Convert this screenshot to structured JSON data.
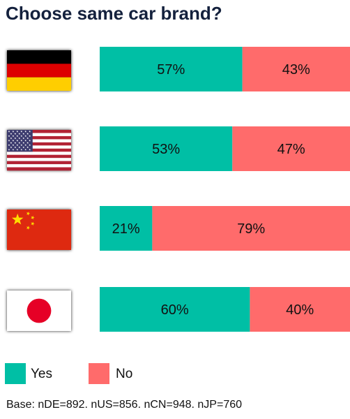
{
  "chart_data": {
    "type": "bar",
    "stacked": true,
    "orientation": "horizontal",
    "title": "Choose same car brand?",
    "categories": [
      "Germany",
      "USA",
      "China",
      "Japan"
    ],
    "category_icons": [
      "germany-flag-icon",
      "usa-flag-icon",
      "china-flag-icon",
      "japan-flag-icon"
    ],
    "series": [
      {
        "name": "Yes",
        "values": [
          57,
          53,
          21,
          60
        ],
        "labels": [
          "57%",
          "53%",
          "21%",
          "60%"
        ],
        "color": "#00bfa5"
      },
      {
        "name": "No",
        "values": [
          43,
          47,
          79,
          40
        ],
        "labels": [
          "43%",
          "47%",
          "79%",
          "40%"
        ],
        "color": "#ff6b6b"
      }
    ],
    "xlim": [
      0,
      100
    ],
    "grid": false,
    "legend": "bottom-left",
    "note": "Base: nDE=892. nUS=856. nCN=948. nJP=760"
  }
}
